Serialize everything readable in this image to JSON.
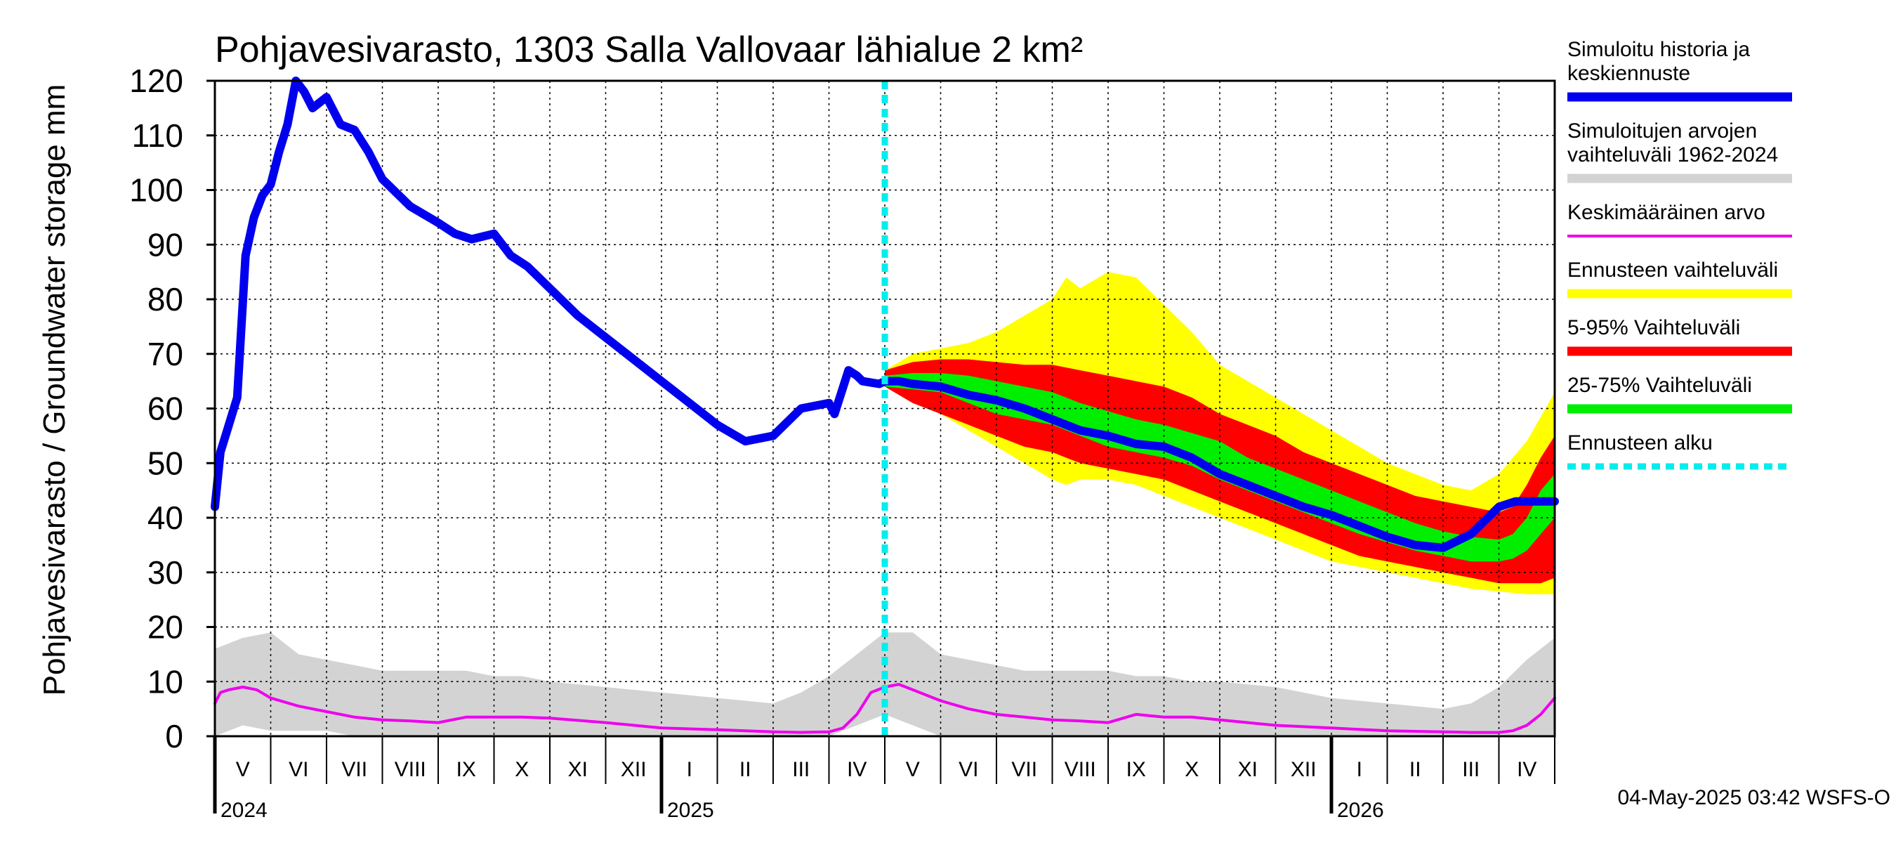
{
  "chart_data": {
    "type": "area",
    "title": "Pohjavesivarasto, 1303 Salla Vallovaar lähialue 2 km²",
    "ylabel": "Pohjavesivarasto / Groundwater storage   mm",
    "ylim": [
      0,
      120
    ],
    "yticks": [
      0,
      10,
      20,
      30,
      40,
      50,
      60,
      70,
      80,
      90,
      100,
      110,
      120
    ],
    "grid": true,
    "legend_position": "right",
    "months": [
      "V",
      "VI",
      "VII",
      "VIII",
      "IX",
      "X",
      "XI",
      "XII",
      "I",
      "II",
      "III",
      "IV",
      "V",
      "VI",
      "VII",
      "VIII",
      "IX",
      "X",
      "XI",
      "XII",
      "I",
      "II",
      "III",
      "IV"
    ],
    "years": [
      {
        "label": "2024",
        "month_index": 0
      },
      {
        "label": "2025",
        "month_index": 8
      },
      {
        "label": "2026",
        "month_index": 20
      }
    ],
    "forecast_start_month_index": 12,
    "footer": "04-May-2025 03:42 WSFS-O",
    "legend": [
      {
        "key": "history",
        "label_lines": [
          "Simuloitu historia ja",
          "keskiennuste"
        ],
        "color": "#0000ee",
        "style": "line"
      },
      {
        "key": "range",
        "label_lines": [
          "Simuloitujen arvojen",
          "vaihteluväli 1962-2024"
        ],
        "color": "#d3d3d3",
        "style": "line"
      },
      {
        "key": "mean",
        "label_lines": [
          "Keskimääräinen arvo"
        ],
        "color": "#ee00ee",
        "style": "thin"
      },
      {
        "key": "forecast_range",
        "label_lines": [
          "Ennusteen vaihteluväli"
        ],
        "color": "#ffff00",
        "style": "line"
      },
      {
        "key": "p5_95",
        "label_lines": [
          "5-95% Vaihteluväli"
        ],
        "color": "#ff0000",
        "style": "line"
      },
      {
        "key": "p25_75",
        "label_lines": [
          "25-75% Vaihteluväli"
        ],
        "color": "#00ee00",
        "style": "line"
      },
      {
        "key": "forecast_start",
        "label_lines": [
          "Ennusteen alku"
        ],
        "color": "#00eeee",
        "style": "dotted"
      }
    ],
    "series": [
      {
        "name": "Simuloitu historia ja keskiennuste",
        "x": [
          0,
          0.1,
          0.25,
          0.4,
          0.55,
          0.7,
          0.85,
          1.0,
          1.15,
          1.3,
          1.45,
          1.6,
          1.75,
          2.0,
          2.25,
          2.5,
          2.75,
          3.0,
          3.5,
          4.0,
          4.3,
          4.6,
          5.0,
          5.3,
          5.6,
          6.0,
          6.5,
          7.0,
          7.5,
          8.0,
          8.5,
          9.0,
          9.5,
          10.0,
          10.5,
          11.0,
          11.1,
          11.35,
          11.5,
          11.6,
          11.9,
          12.0,
          12.25,
          12.5,
          13.0,
          13.5,
          14.0,
          14.5,
          15.0,
          15.5,
          16.0,
          16.5,
          17.0,
          17.5,
          18.0,
          18.5,
          19.0,
          19.5,
          20.0,
          20.5,
          21.0,
          21.5,
          22.0,
          22.5,
          23.0,
          23.3,
          23.6,
          24.0
        ],
        "values": [
          42,
          52,
          57,
          62,
          88,
          95,
          99,
          101,
          107,
          112,
          120,
          118,
          115,
          117,
          112,
          111,
          107,
          102,
          97,
          94,
          92,
          91,
          92,
          88,
          86,
          82,
          77,
          73,
          69,
          65,
          61,
          57,
          54,
          55,
          60,
          61,
          59,
          67,
          66,
          65,
          64.5,
          65,
          65,
          64.5,
          64,
          62.5,
          61.5,
          60,
          58,
          56,
          55,
          53.5,
          53,
          51,
          48,
          46,
          44,
          42,
          40.5,
          38.5,
          36.5,
          35,
          34.5,
          37,
          42,
          43,
          43,
          43
        ]
      },
      {
        "name": "Keskimääräinen arvo",
        "x": [
          0,
          0.1,
          0.25,
          0.5,
          0.75,
          1.0,
          1.5,
          2.0,
          2.5,
          3.0,
          3.5,
          4.0,
          4.5,
          5.0,
          5.5,
          6.0,
          7.0,
          8.0,
          9.0,
          10.0,
          10.5,
          11.0,
          11.25,
          11.5,
          11.75,
          12.0,
          12.25,
          12.5,
          13.0,
          13.5,
          14.0,
          14.5,
          15.0,
          15.5,
          16.0,
          16.5,
          17.0,
          17.5,
          18.0,
          19.0,
          20.0,
          21.0,
          22.0,
          22.5,
          23.0,
          23.25,
          23.5,
          23.75,
          24.0
        ],
        "values": [
          6,
          8,
          8.5,
          9,
          8.5,
          7,
          5.5,
          4.5,
          3.5,
          3,
          2.8,
          2.5,
          3.5,
          3.5,
          3.5,
          3.3,
          2.5,
          1.5,
          1.2,
          0.8,
          0.7,
          0.8,
          1.5,
          4,
          8,
          9,
          9.5,
          8.5,
          6.5,
          5,
          4,
          3.5,
          3,
          2.8,
          2.5,
          4,
          3.5,
          3.5,
          3,
          2,
          1.5,
          1,
          0.8,
          0.7,
          0.7,
          1,
          2,
          4,
          7
        ]
      },
      {
        "name": "Simuloitujen arvojen vaihteluväli 1962-2024",
        "x": [
          0,
          0.5,
          1.0,
          1.5,
          2.0,
          2.5,
          3.0,
          3.5,
          4.0,
          4.5,
          5.0,
          5.5,
          6.0,
          7.0,
          8.0,
          9.0,
          10.0,
          10.5,
          11.0,
          11.5,
          12.0,
          12.5,
          13.0,
          13.5,
          14.0,
          14.5,
          15.0,
          15.5,
          16.0,
          16.5,
          17.0,
          17.5,
          18.0,
          19.0,
          20.0,
          21.0,
          22.0,
          22.5,
          23.0,
          23.5,
          24.0
        ],
        "upper": [
          16,
          18,
          19,
          15,
          14,
          13,
          12,
          12,
          12,
          12,
          11,
          11,
          10,
          9,
          8,
          7,
          6,
          8,
          11,
          15,
          19,
          19,
          15,
          14,
          13,
          12,
          12,
          12,
          12,
          11,
          11,
          10,
          10,
          9,
          7,
          6,
          5,
          6,
          9,
          14,
          18
        ],
        "lower": [
          0,
          2,
          1,
          1,
          1,
          0,
          0,
          0,
          0,
          0,
          0,
          0,
          0,
          0,
          0,
          0,
          0,
          0,
          0,
          2,
          4,
          2,
          0,
          0,
          0,
          0,
          0,
          0,
          0,
          0,
          0,
          0,
          0,
          0,
          0,
          0,
          0,
          0,
          0,
          0,
          0
        ]
      },
      {
        "name": "Ennusteen vaihteluväli",
        "x": [
          12.0,
          12.5,
          13.0,
          13.5,
          14.0,
          14.5,
          15.0,
          15.25,
          15.5,
          16.0,
          16.5,
          17.0,
          17.5,
          18.0,
          18.5,
          19.0,
          19.5,
          20.0,
          20.5,
          21.0,
          21.5,
          22.0,
          22.5,
          23.0,
          23.5,
          24.0
        ],
        "upper": [
          67,
          70,
          71,
          72,
          74,
          77,
          80,
          84,
          82,
          85,
          84,
          79,
          74,
          68,
          65,
          62,
          59,
          56,
          53,
          50,
          48,
          46,
          45,
          48,
          54,
          63
        ],
        "lower": [
          64,
          61,
          59,
          56,
          53,
          50,
          47,
          46,
          47,
          47,
          46,
          44,
          42,
          40,
          38,
          36,
          34,
          32,
          31,
          30,
          29,
          28,
          27,
          26.5,
          26,
          26
        ]
      },
      {
        "name": "5-95% Vaihteluväli",
        "x": [
          12.0,
          12.5,
          13.0,
          13.5,
          14.0,
          14.5,
          15.0,
          15.5,
          16.0,
          16.5,
          17.0,
          17.5,
          18.0,
          18.5,
          19.0,
          19.5,
          20.0,
          20.5,
          21.0,
          21.5,
          22.0,
          22.5,
          23.0,
          23.25,
          23.5,
          23.75,
          24.0
        ],
        "upper": [
          67,
          68.5,
          69,
          69,
          68.5,
          68,
          68,
          67,
          66,
          65,
          64,
          62,
          59,
          57,
          55,
          52,
          50,
          48,
          46,
          44,
          43,
          42,
          41,
          42,
          46,
          51,
          55
        ],
        "lower": [
          64,
          61,
          59,
          57,
          55,
          53,
          52,
          50,
          49,
          48,
          47,
          45,
          43,
          41,
          39,
          37,
          35,
          33,
          32,
          31,
          30,
          29,
          28,
          28,
          28,
          28,
          29
        ]
      },
      {
        "name": "25-75% Vaihteluväli",
        "x": [
          12.0,
          12.5,
          13.0,
          13.5,
          14.0,
          14.5,
          15.0,
          15.5,
          16.0,
          16.5,
          17.0,
          17.5,
          18.0,
          18.5,
          19.0,
          19.5,
          20.0,
          20.5,
          21.0,
          21.5,
          22.0,
          22.5,
          23.0,
          23.25,
          23.5,
          23.75,
          24.0
        ],
        "upper": [
          66,
          66.5,
          66.5,
          66,
          65,
          64,
          63,
          61,
          59.5,
          58,
          57,
          55.5,
          54,
          51,
          49,
          47,
          45,
          43,
          41,
          39,
          37.5,
          36.5,
          36,
          37,
          40,
          45,
          48
        ],
        "lower": [
          64,
          63.5,
          63,
          61,
          59,
          58,
          57,
          55,
          53,
          52,
          51,
          49.5,
          47,
          45,
          43,
          41,
          39,
          37,
          35.5,
          34,
          33,
          32,
          32,
          32.5,
          34,
          37,
          40
        ]
      }
    ]
  }
}
